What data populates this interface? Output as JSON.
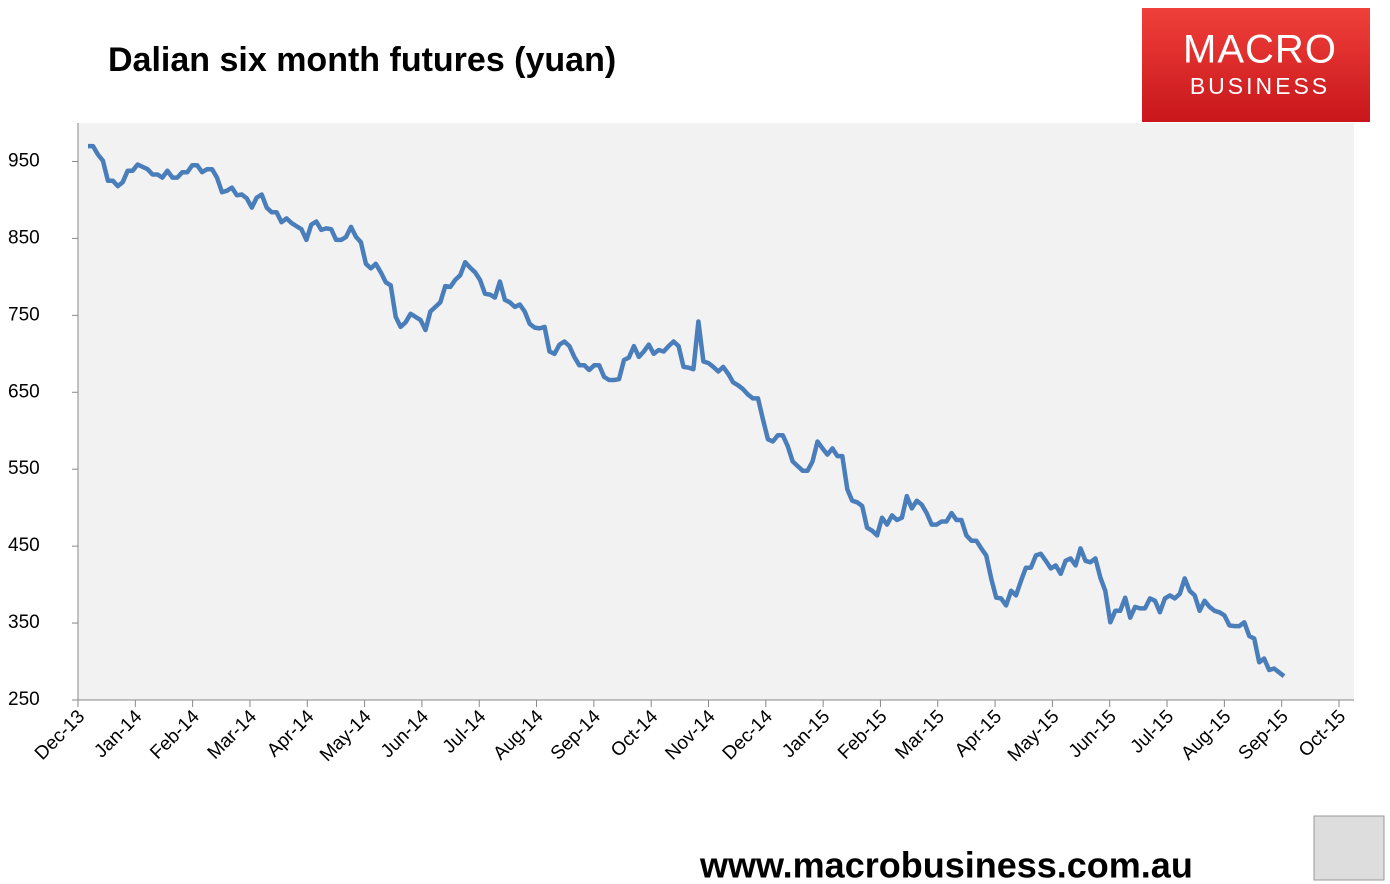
{
  "chart_data": {
    "type": "line",
    "title": "Dalian six month futures (yuan)",
    "x_labels": [
      "Dec-13",
      "Jan-14",
      "Feb-14",
      "Mar-14",
      "Apr-14",
      "May-14",
      "Jun-14",
      "Jul-14",
      "Aug-14",
      "Sep-14",
      "Oct-14",
      "Nov-14",
      "Dec-14",
      "Jan-15",
      "Feb-15",
      "Mar-15",
      "Apr-15",
      "May-15",
      "Jun-15",
      "Jul-15",
      "Aug-15",
      "Sep-15",
      "Oct-15"
    ],
    "ylim": [
      250,
      1000
    ],
    "yticks": [
      250,
      350,
      450,
      550,
      650,
      750,
      850,
      950
    ],
    "series": [
      {
        "color": "#4a7ebb",
        "values": [
          970,
          970,
          959,
          951,
          925,
          925,
          918,
          923,
          938,
          938,
          946,
          943,
          940,
          933,
          933,
          929,
          938,
          929,
          929,
          936,
          936,
          945,
          945,
          936,
          940,
          940,
          929,
          910,
          912,
          916,
          906,
          907,
          902,
          890,
          903,
          907,
          890,
          884,
          884,
          871,
          876,
          870,
          866,
          862,
          848,
          868,
          872,
          861,
          863,
          862,
          848,
          848,
          852,
          865,
          852,
          845,
          817,
          811,
          817,
          806,
          793,
          789,
          748,
          735,
          741,
          752,
          748,
          744,
          731,
          755,
          761,
          767,
          788,
          787,
          796,
          802,
          819,
          812,
          806,
          796,
          778,
          777,
          773,
          794,
          770,
          767,
          761,
          764,
          755,
          739,
          734,
          733,
          735,
          703,
          700,
          712,
          716,
          710,
          696,
          685,
          685,
          679,
          685,
          685,
          670,
          666,
          666,
          667,
          692,
          695,
          710,
          696,
          703,
          712,
          700,
          705,
          703,
          710,
          716,
          710,
          683,
          682,
          680,
          742,
          690,
          688,
          683,
          677,
          683,
          674,
          663,
          659,
          654,
          647,
          642,
          642,
          615,
          589,
          586,
          594,
          594,
          580,
          560,
          554,
          548,
          548,
          560,
          586,
          577,
          569,
          577,
          567,
          567,
          524,
          509,
          507,
          502,
          474,
          470,
          464,
          487,
          478,
          490,
          484,
          487,
          515,
          499,
          509,
          504,
          493,
          478,
          478,
          482,
          482,
          493,
          484,
          484,
          464,
          457,
          457,
          447,
          438,
          408,
          383,
          382,
          373,
          392,
          386,
          405,
          422,
          422,
          438,
          440,
          431,
          421,
          425,
          414,
          431,
          434,
          425,
          447,
          431,
          429,
          434,
          409,
          392,
          351,
          366,
          366,
          383,
          357,
          371,
          369,
          369,
          382,
          379,
          364,
          382,
          386,
          382,
          388,
          408,
          392,
          386,
          366,
          379,
          371,
          366,
          364,
          360,
          347,
          346,
          346,
          351,
          333,
          330,
          299,
          304,
          289,
          291,
          286,
          281
        ]
      }
    ]
  },
  "logo": {
    "line1": "MACRO",
    "line2": "BUSINESS"
  },
  "footer_url": "www.macrobusiness.com.au"
}
